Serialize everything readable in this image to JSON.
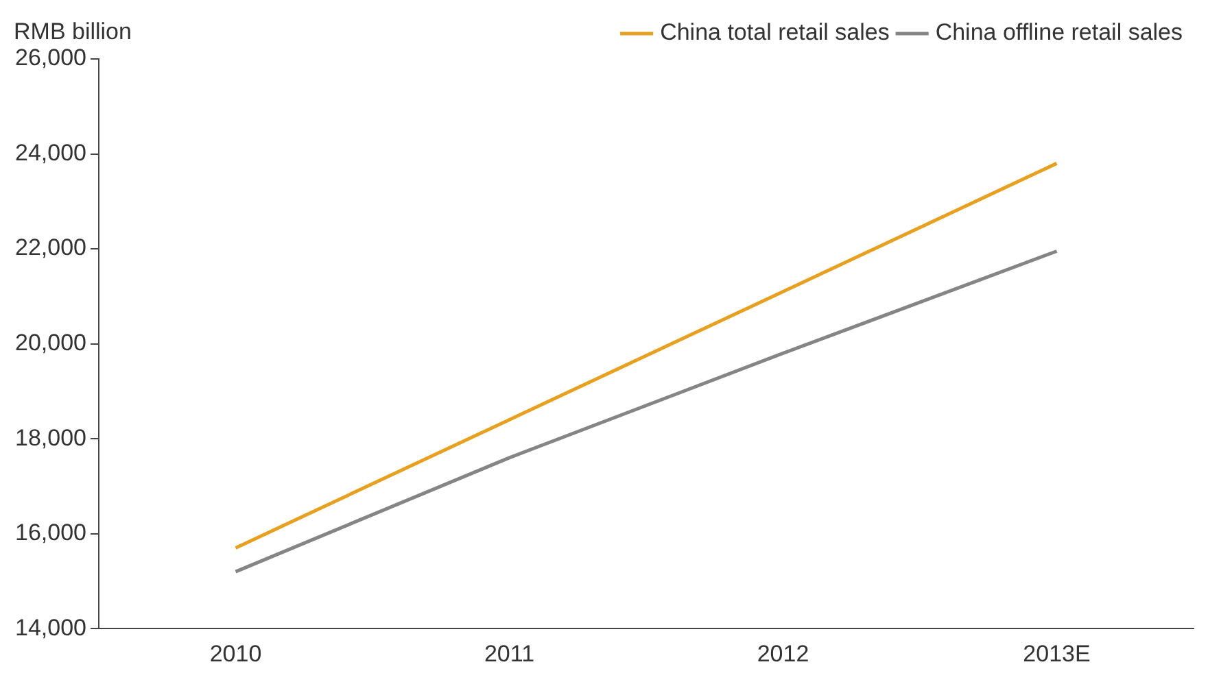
{
  "chart_data": {
    "type": "line",
    "ylabel": "RMB billion",
    "categories": [
      "2010",
      "2011",
      "2012",
      "2013E"
    ],
    "series": [
      {
        "name": "China total retail sales",
        "color": "#e8a020",
        "values": [
          15700,
          18400,
          21100,
          23800
        ]
      },
      {
        "name": "China offline retail sales",
        "color": "#858585",
        "values": [
          15200,
          17600,
          19800,
          21950
        ]
      }
    ],
    "ylim": [
      14000,
      26000
    ],
    "yticks": [
      {
        "value": 14000,
        "label": "14,000"
      },
      {
        "value": 16000,
        "label": "16,000"
      },
      {
        "value": 18000,
        "label": "18,000"
      },
      {
        "value": 20000,
        "label": "20,000"
      },
      {
        "value": 22000,
        "label": "22,000"
      },
      {
        "value": 24000,
        "label": "24,000"
      },
      {
        "value": 26000,
        "label": "26,000"
      }
    ],
    "grid": false,
    "legend": "top",
    "marker": "none",
    "line_style": "solid"
  }
}
